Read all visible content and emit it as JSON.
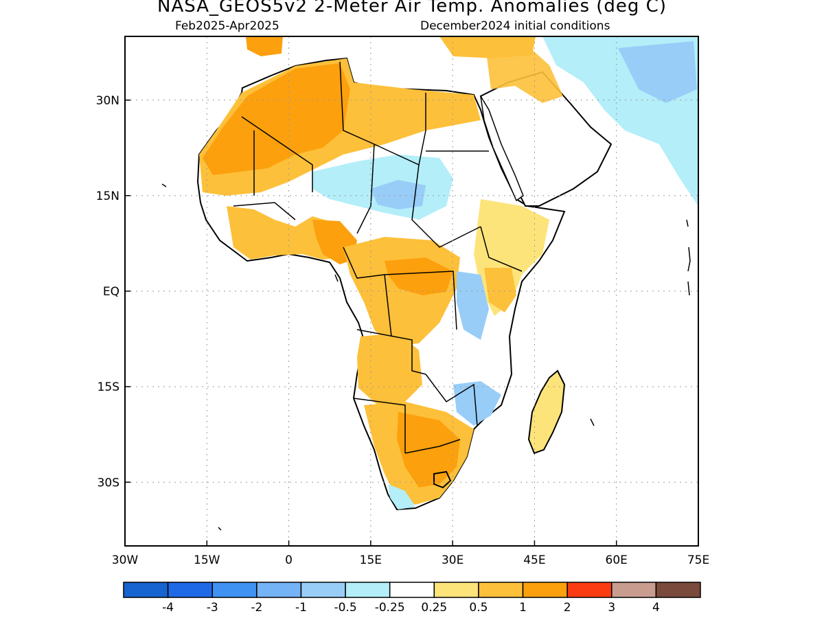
{
  "title": "NASA_GEOS5v2 2-Meter Air Temp. Anomalies (deg C)",
  "subtitle_left": "Feb2025-Apr2025",
  "subtitle_right": "December2024 initial conditions",
  "axes": {
    "x_ticks": [
      "30W",
      "15W",
      "0",
      "15E",
      "30E",
      "45E",
      "60E",
      "75E"
    ],
    "y_ticks": [
      "30N",
      "15N",
      "EQ",
      "15S",
      "30S"
    ],
    "lon_range": [
      -30,
      75
    ],
    "lat_range": [
      -40,
      40
    ],
    "grid": "dotted"
  },
  "colorbar": {
    "colors": [
      "#1763cf",
      "#1f69e6",
      "#3f92f1",
      "#74b3f6",
      "#98cdf8",
      "#b3eef9",
      "#ffffff",
      "#fde47a",
      "#fdc03a",
      "#fca00d",
      "#fb3c12",
      "#c89d8f",
      "#7a4b3c"
    ],
    "labels": [
      "-4",
      "-3",
      "-2",
      "-1",
      "-0.5",
      "-0.25",
      "0.25",
      "0.5",
      "1",
      "2",
      "3",
      "4"
    ]
  }
}
